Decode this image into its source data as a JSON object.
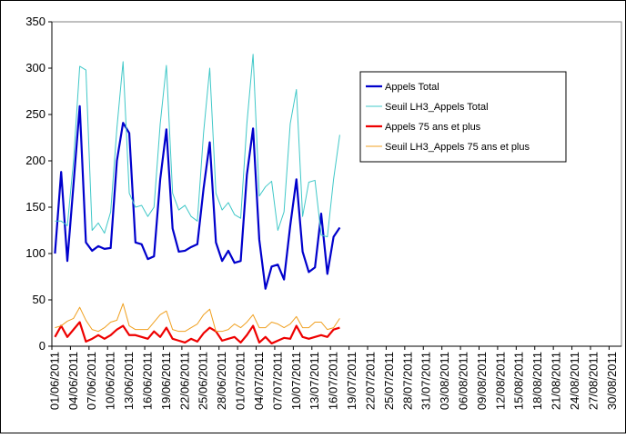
{
  "chart_data": {
    "type": "line",
    "categories": [
      "01/06/2011",
      null,
      null,
      "04/06/2011",
      null,
      null,
      "07/06/2011",
      null,
      null,
      "10/06/2011",
      null,
      null,
      "13/06/2011",
      null,
      null,
      "16/06/2011",
      null,
      null,
      "19/06/2011",
      null,
      null,
      "22/06/2011",
      null,
      null,
      "25/06/2011",
      null,
      null,
      "28/06/2011",
      null,
      null,
      "01/07/2011",
      null,
      null,
      "04/07/2011",
      null,
      null,
      "07/07/2011",
      null,
      null,
      "10/07/2011",
      null,
      null,
      "13/07/2011",
      null,
      null,
      "16/07/2011",
      null,
      null,
      "19/07/2011",
      null,
      null,
      "22/07/2011",
      null,
      null,
      "25/07/2011",
      null,
      null,
      "28/07/2011",
      null,
      null,
      "31/07/2011",
      null,
      null,
      "03/08/2011",
      null,
      null,
      "06/08/2011",
      null,
      null,
      "09/08/2011",
      null,
      null,
      "12/08/2011",
      null,
      null,
      "15/08/2011",
      null,
      null,
      "18/08/2011",
      null,
      null,
      "21/08/2011",
      null,
      null,
      "24/08/2011",
      null,
      null,
      "27/08/2011",
      null,
      null,
      "30/08/2011",
      null
    ],
    "series": [
      {
        "name": "Appels Total",
        "color": "#0000cc",
        "width": 2.2,
        "values": [
          100,
          188,
          92,
          175,
          259,
          112,
          103,
          108,
          105,
          106,
          200,
          241,
          230,
          112,
          110,
          94,
          97,
          180,
          234,
          127,
          102,
          103,
          107,
          110,
          170,
          220,
          112,
          92,
          103,
          90,
          92,
          185,
          235,
          115,
          62,
          86,
          88,
          72,
          130,
          180,
          102,
          80,
          85,
          143,
          78,
          118,
          128,
          null,
          null,
          null,
          null,
          null,
          null,
          null,
          null,
          null,
          null,
          null,
          null,
          null,
          null,
          null,
          null,
          null,
          null,
          null,
          null,
          null,
          null,
          null,
          null,
          null,
          null,
          null,
          null,
          null,
          null,
          null,
          null,
          null,
          null,
          null,
          null,
          null,
          null,
          null,
          null,
          null,
          null,
          null,
          null,
          null
        ]
      },
      {
        "name": "Seuil LH3_Appels Total",
        "color": "#40c8c8",
        "width": 1,
        "values": [
          135,
          135,
          130,
          200,
          302,
          298,
          125,
          133,
          122,
          145,
          235,
          307,
          165,
          150,
          152,
          140,
          150,
          240,
          303,
          165,
          147,
          152,
          140,
          135,
          230,
          300,
          165,
          147,
          155,
          142,
          138,
          240,
          315,
          162,
          172,
          178,
          125,
          145,
          240,
          277,
          140,
          177,
          179,
          120,
          118,
          180,
          228,
          null,
          null,
          null,
          null,
          null,
          null,
          null,
          null,
          null,
          null,
          null,
          null,
          null,
          null,
          null,
          null,
          null,
          null,
          null,
          null,
          null,
          null,
          null,
          null,
          null,
          null,
          null,
          null,
          null,
          null,
          null,
          null,
          null,
          null,
          null,
          null,
          null,
          null,
          null,
          null,
          null,
          null,
          null,
          null,
          null
        ]
      },
      {
        "name": "Appels 75 ans et plus",
        "color": "#ee0000",
        "width": 2.2,
        "values": [
          10,
          22,
          10,
          18,
          26,
          5,
          8,
          12,
          8,
          12,
          18,
          22,
          12,
          12,
          10,
          8,
          16,
          10,
          20,
          8,
          6,
          4,
          8,
          5,
          14,
          20,
          16,
          6,
          8,
          10,
          4,
          12,
          22,
          4,
          10,
          3,
          6,
          9,
          8,
          22,
          10,
          8,
          10,
          12,
          10,
          18,
          20,
          null,
          null,
          null,
          null,
          null,
          null,
          null,
          null,
          null,
          null,
          null,
          null,
          null,
          null,
          null,
          null,
          null,
          null,
          null,
          null,
          null,
          null,
          null,
          null,
          null,
          null,
          null,
          null,
          null,
          null,
          null,
          null,
          null,
          null,
          null,
          null,
          null,
          null,
          null,
          null,
          null,
          null,
          null,
          null,
          null
        ]
      },
      {
        "name": "Seuil LH3_Appels 75 ans et plus",
        "color": "#f0a020",
        "width": 1,
        "values": [
          20,
          22,
          27,
          30,
          42,
          28,
          18,
          16,
          20,
          26,
          28,
          46,
          22,
          18,
          18,
          18,
          26,
          34,
          38,
          18,
          16,
          16,
          20,
          24,
          34,
          40,
          16,
          16,
          18,
          24,
          20,
          26,
          34,
          20,
          20,
          26,
          24,
          20,
          24,
          32,
          20,
          20,
          26,
          26,
          18,
          20,
          30,
          null,
          null,
          null,
          null,
          null,
          null,
          null,
          null,
          null,
          null,
          null,
          null,
          null,
          null,
          null,
          null,
          null,
          null,
          null,
          null,
          null,
          null,
          null,
          null,
          null,
          null,
          null,
          null,
          null,
          null,
          null,
          null,
          null,
          null,
          null,
          null,
          null,
          null,
          null,
          null,
          null,
          null,
          null,
          null,
          null
        ]
      }
    ],
    "ylim": [
      0,
      350
    ],
    "yticks": [
      0,
      50,
      100,
      150,
      200,
      250,
      300,
      350
    ],
    "grid": false
  }
}
